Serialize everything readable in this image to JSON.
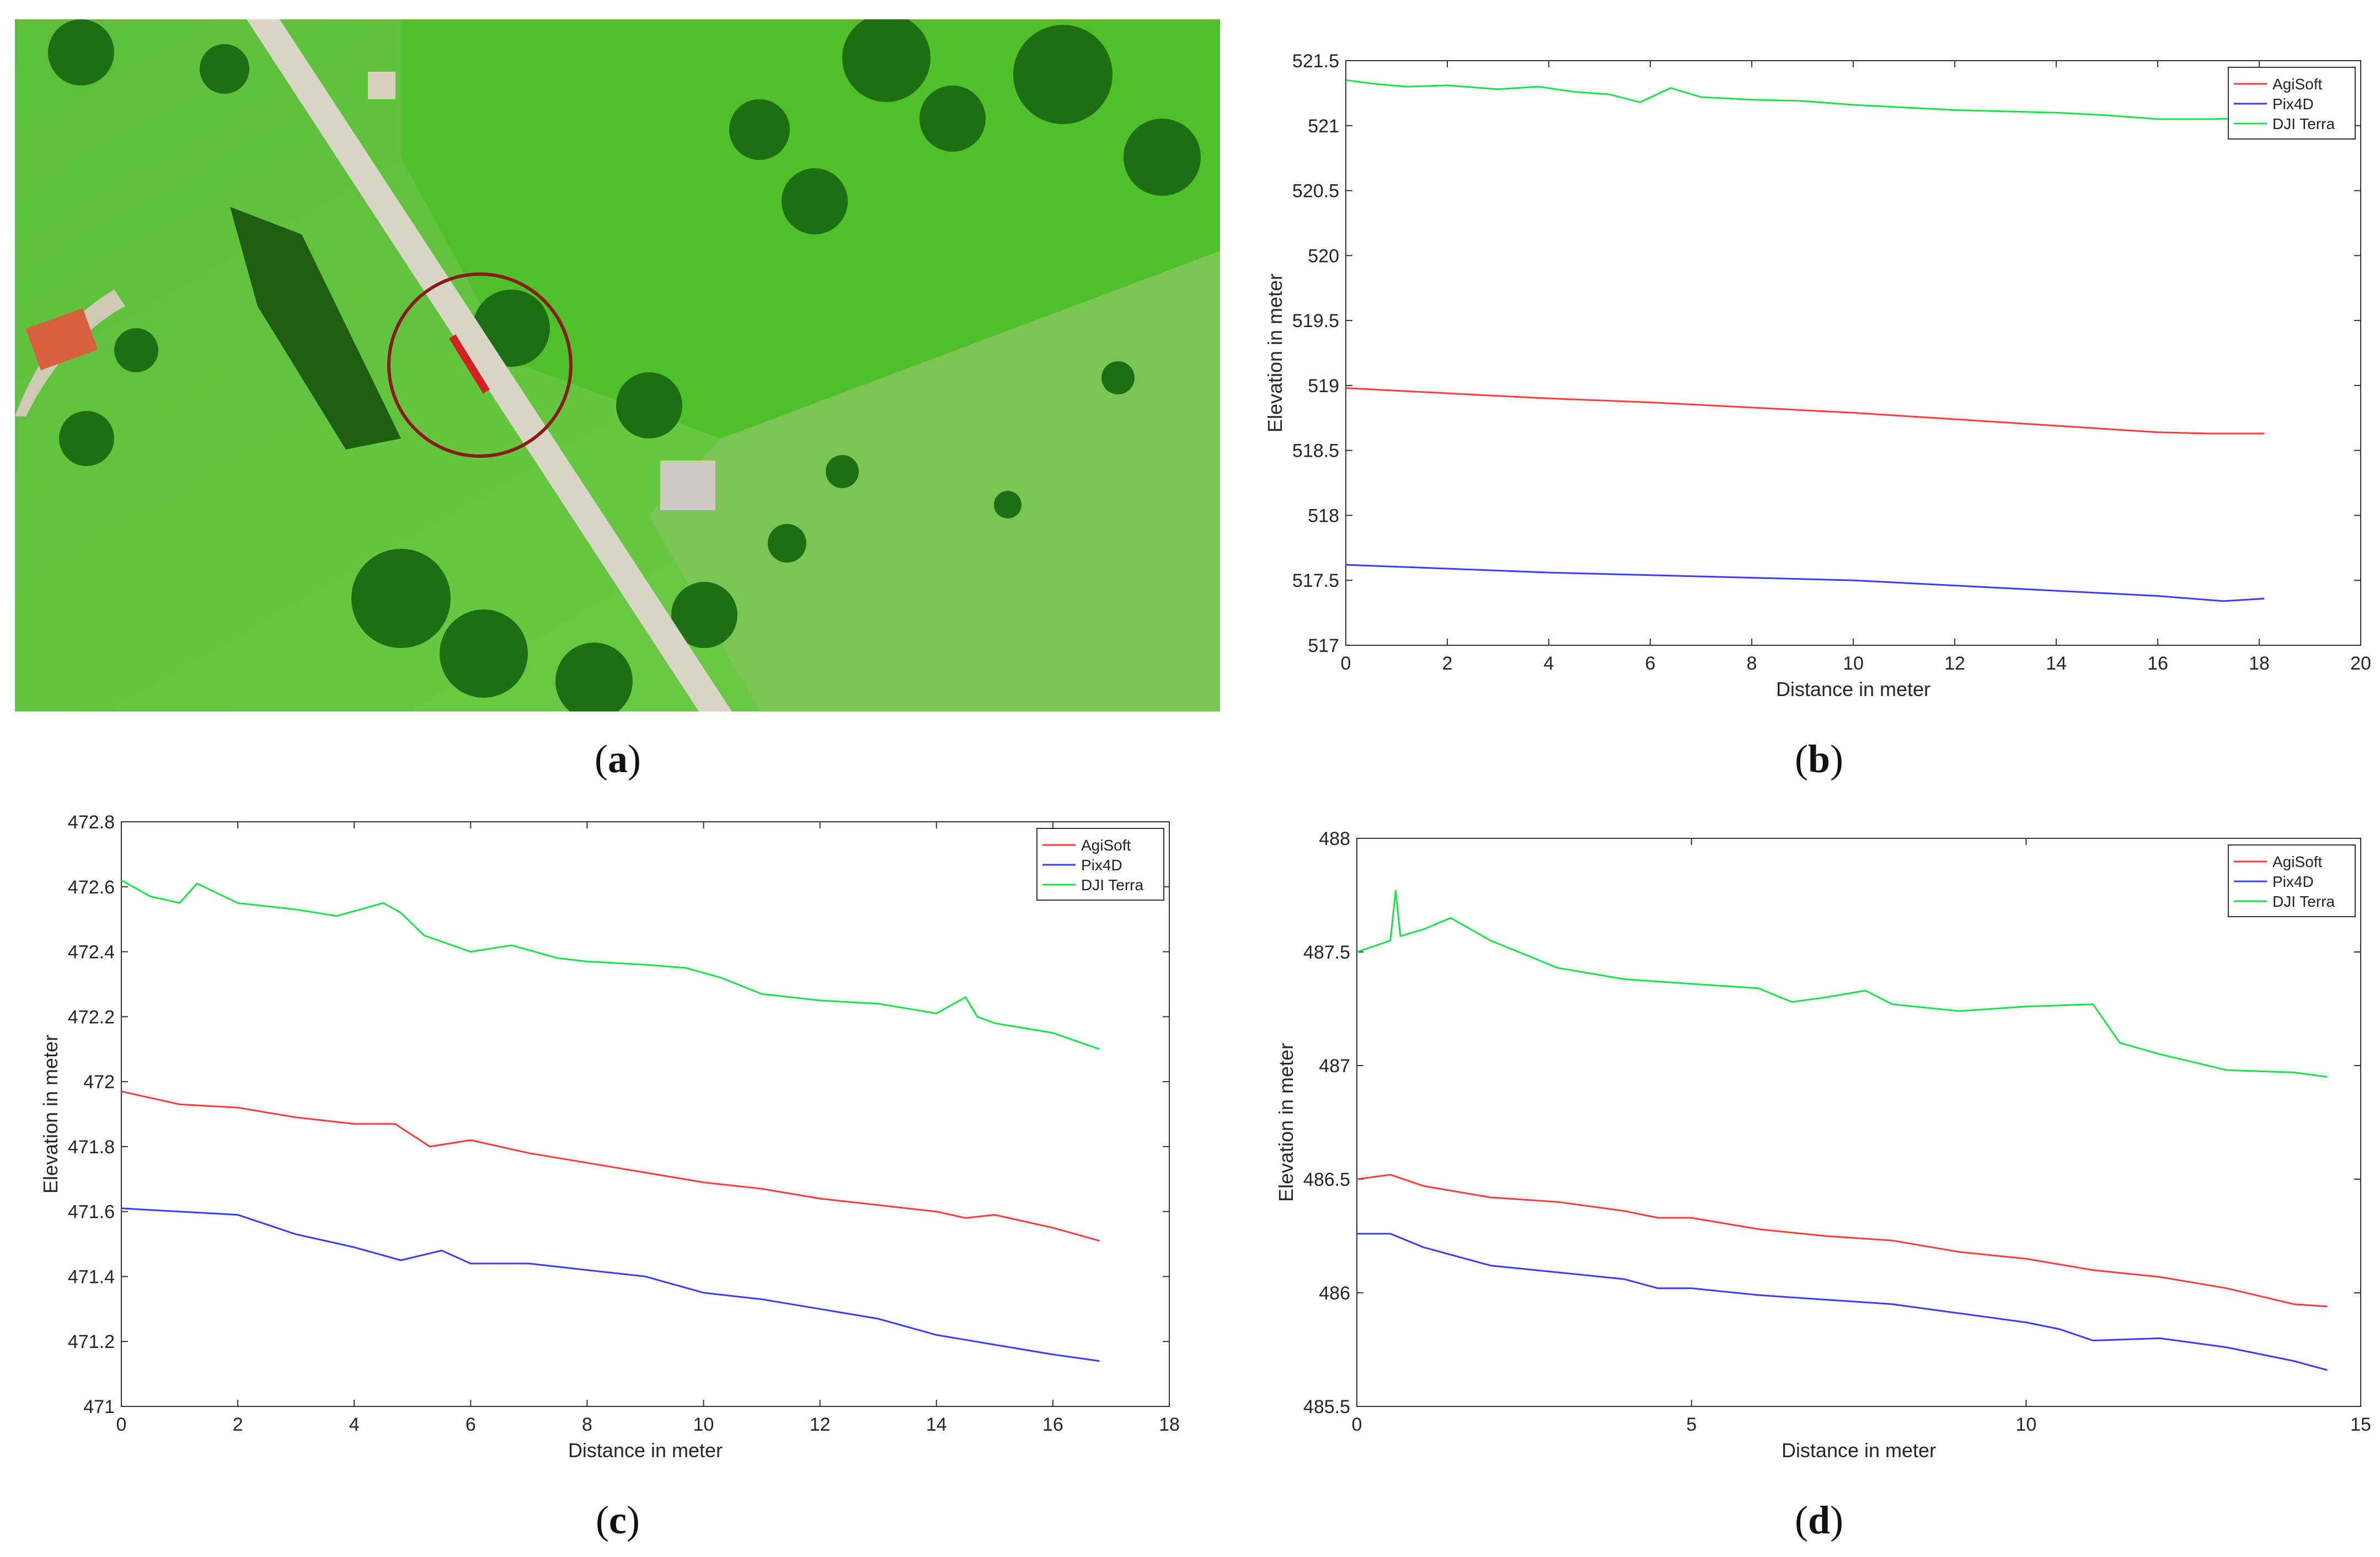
{
  "captions": {
    "a": "a",
    "b": "b",
    "c": "c",
    "d": "d"
  },
  "colors": {
    "agisoft": "#ff3b3b",
    "pix4d": "#3b3bff",
    "dji": "#19e34a",
    "highlight_circle": "#8b1a1a"
  },
  "chart_data": [
    {
      "id": "b",
      "type": "line",
      "xlabel": "Distance in meter",
      "ylabel": "Elevation in meter",
      "xlim": [
        0,
        20
      ],
      "ylim": [
        517,
        521.5
      ],
      "xticks": [
        0,
        2,
        4,
        6,
        8,
        10,
        12,
        14,
        16,
        18,
        20
      ],
      "yticks": [
        517,
        517.5,
        518,
        518.5,
        519,
        519.5,
        520,
        520.5,
        521,
        521.5
      ],
      "legend_position": "top-right",
      "series": [
        {
          "name": "AgiSoft",
          "x": [
            0,
            2,
            4,
            6,
            8,
            10,
            12,
            14,
            16,
            17,
            18.1
          ],
          "y": [
            518.98,
            518.94,
            518.9,
            518.87,
            518.83,
            518.79,
            518.74,
            518.69,
            518.64,
            518.63,
            518.63
          ]
        },
        {
          "name": "Pix4D",
          "x": [
            0,
            2,
            4,
            6,
            8,
            10,
            12,
            14,
            16,
            17.3,
            18.1
          ],
          "y": [
            517.62,
            517.59,
            517.56,
            517.54,
            517.52,
            517.5,
            517.46,
            517.42,
            517.38,
            517.34,
            517.36
          ]
        },
        {
          "name": "DJI Terra",
          "x": [
            0,
            0.6,
            1.2,
            2,
            3,
            3.8,
            4.5,
            5.2,
            5.8,
            6.4,
            7,
            8,
            9,
            10,
            11,
            12,
            13,
            14,
            15,
            16,
            17,
            18.1
          ],
          "y": [
            521.35,
            521.32,
            521.3,
            521.31,
            521.28,
            521.3,
            521.26,
            521.24,
            521.18,
            521.29,
            521.22,
            521.2,
            521.19,
            521.16,
            521.14,
            521.12,
            521.11,
            521.1,
            521.08,
            521.05,
            521.05,
            521.06
          ]
        }
      ]
    },
    {
      "id": "c",
      "type": "line",
      "xlabel": "Distance in meter",
      "ylabel": "Elevation in meter",
      "xlim": [
        0,
        18
      ],
      "ylim": [
        471,
        472.8
      ],
      "xticks": [
        0,
        2,
        4,
        6,
        8,
        10,
        12,
        14,
        16,
        18
      ],
      "yticks": [
        471,
        471.2,
        471.4,
        471.6,
        471.8,
        472,
        472.2,
        472.4,
        472.6,
        472.8
      ],
      "legend_position": "top-right",
      "series": [
        {
          "name": "AgiSoft",
          "x": [
            0,
            1,
            2,
            3,
            4,
            4.7,
            5.3,
            6,
            7,
            8,
            9,
            10,
            11,
            12,
            13,
            14,
            14.5,
            15,
            16,
            16.8
          ],
          "y": [
            471.97,
            471.93,
            471.92,
            471.89,
            471.87,
            471.87,
            471.8,
            471.82,
            471.78,
            471.75,
            471.72,
            471.69,
            471.67,
            471.64,
            471.62,
            471.6,
            471.58,
            471.59,
            471.55,
            471.51
          ]
        },
        {
          "name": "Pix4D",
          "x": [
            0,
            1,
            2,
            3,
            4,
            4.8,
            5.5,
            6,
            7,
            8,
            9,
            10,
            11,
            12,
            13,
            14,
            15,
            16,
            16.8
          ],
          "y": [
            471.61,
            471.6,
            471.59,
            471.53,
            471.49,
            471.45,
            471.48,
            471.44,
            471.44,
            471.42,
            471.4,
            471.35,
            471.33,
            471.3,
            471.27,
            471.22,
            471.19,
            471.16,
            471.14
          ]
        },
        {
          "name": "DJI Terra",
          "x": [
            0,
            0.5,
            1,
            1.3,
            2,
            3,
            3.7,
            4.5,
            4.8,
            5.2,
            6,
            6.7,
            7.5,
            8,
            9,
            9.7,
            10.3,
            11,
            12,
            13,
            14,
            14.5,
            14.7,
            15,
            16,
            16.8
          ],
          "y": [
            472.62,
            472.57,
            472.55,
            472.61,
            472.55,
            472.53,
            472.51,
            472.55,
            472.52,
            472.45,
            472.4,
            472.42,
            472.38,
            472.37,
            472.36,
            472.35,
            472.32,
            472.27,
            472.25,
            472.24,
            472.21,
            472.26,
            472.2,
            472.18,
            472.15,
            472.1
          ]
        }
      ]
    },
    {
      "id": "d",
      "type": "line",
      "xlabel": "Distance in meter",
      "ylabel": "Elevation in meter",
      "xlim": [
        0,
        15
      ],
      "ylim": [
        485.5,
        488
      ],
      "xticks": [
        0,
        5,
        10,
        15
      ],
      "yticks": [
        485.5,
        486,
        486.5,
        487,
        487.5,
        488
      ],
      "legend_position": "top-right",
      "series": [
        {
          "name": "AgiSoft",
          "x": [
            0,
            0.5,
            1,
            2,
            3,
            4,
            4.5,
            5,
            6,
            7,
            8,
            9,
            10,
            11,
            12,
            13,
            14,
            14.5
          ],
          "y": [
            486.5,
            486.52,
            486.47,
            486.42,
            486.4,
            486.36,
            486.33,
            486.33,
            486.28,
            486.25,
            486.23,
            486.18,
            486.15,
            486.1,
            486.07,
            486.02,
            485.95,
            485.94
          ]
        },
        {
          "name": "Pix4D",
          "x": [
            0,
            0.5,
            1,
            2,
            3,
            4,
            4.5,
            5,
            6,
            7,
            8,
            9,
            10,
            10.5,
            11,
            12,
            13,
            14,
            14.5
          ],
          "y": [
            486.26,
            486.26,
            486.2,
            486.12,
            486.09,
            486.06,
            486.02,
            486.02,
            485.99,
            485.97,
            485.95,
            485.91,
            485.87,
            485.84,
            485.79,
            485.8,
            485.76,
            485.7,
            485.66
          ]
        },
        {
          "name": "DJI Terra",
          "x": [
            0,
            0.5,
            0.58,
            0.65,
            1,
            1.4,
            2,
            3,
            4,
            5,
            6,
            6.5,
            7,
            7.6,
            8,
            9,
            10,
            11,
            11.4,
            12,
            13,
            14,
            14.5
          ],
          "y": [
            487.5,
            487.55,
            487.77,
            487.57,
            487.6,
            487.65,
            487.55,
            487.43,
            487.38,
            487.36,
            487.34,
            487.28,
            487.3,
            487.33,
            487.27,
            487.24,
            487.26,
            487.27,
            487.1,
            487.05,
            486.98,
            486.97,
            486.95
          ]
        }
      ]
    }
  ]
}
